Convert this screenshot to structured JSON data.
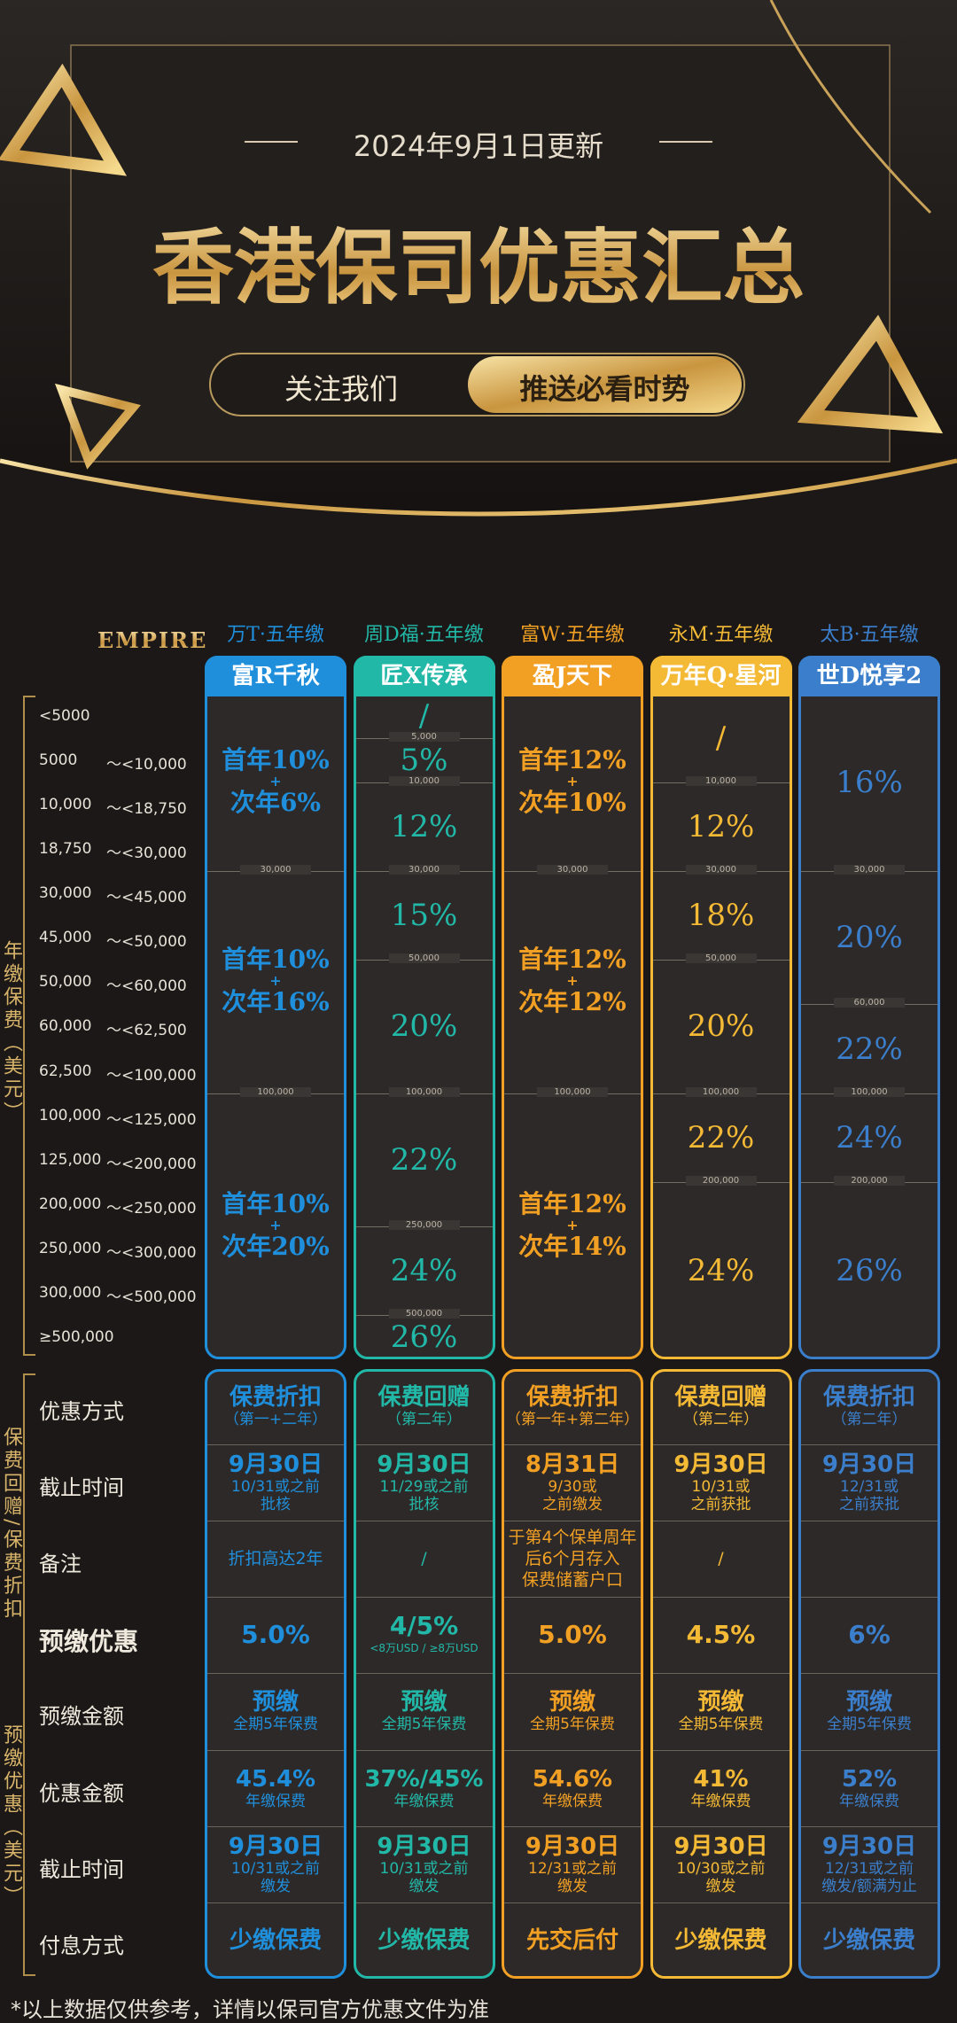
{
  "header": {
    "date": "2024年9月1日更新",
    "title": "香港保司优惠汇总",
    "buttons": [
      "关注我们",
      "推送必看时势"
    ]
  },
  "logo": "EMPIRE",
  "premium_section": {
    "side_label": "年缴保费（美元）",
    "ranges": [
      {
        "from": "<5000"
      },
      {
        "from": "5000",
        "to": "～<10,000"
      },
      {
        "from": "10,000",
        "to": "～<18,750"
      },
      {
        "from": "18,750",
        "to": "～<30,000"
      },
      {
        "from": "30,000",
        "to": "～<45,000"
      },
      {
        "from": "45,000",
        "to": "～<50,000"
      },
      {
        "from": "50,000",
        "to": "～<60,000"
      },
      {
        "from": "60,000",
        "to": "～<62,500"
      },
      {
        "from": "62,500",
        "to": "～<100,000"
      },
      {
        "from": "100,000",
        "to": "～<125,000"
      },
      {
        "from": "125,000",
        "to": "～<200,000"
      },
      {
        "from": "200,000",
        "to": "～<250,000"
      },
      {
        "from": "250,000",
        "to": "～<300,000"
      },
      {
        "from": "300,000",
        "to": "～<500,000"
      },
      {
        "from": "≥500,000"
      }
    ]
  },
  "offer_section": {
    "side_labels": [
      "保费回赠/保费折扣",
      "预缴优惠（美元）"
    ],
    "row_labels": [
      "优惠方式",
      "截止时间",
      "备注",
      "预缴优惠",
      "预缴金额",
      "优惠金额",
      "截止时间",
      "付息方式"
    ]
  },
  "columns": [
    {
      "plan": "万T·五年缴",
      "product": "富R千秋",
      "color": "#1f8fdc",
      "segments": [
        [
          "首年10%",
          "+",
          "次年6%"
        ],
        [
          "首年10%",
          "+",
          "次年16%"
        ],
        [
          "首年10%",
          "+",
          "次年20%"
        ]
      ],
      "boundaries": [
        "30,000",
        "100,000"
      ],
      "offers": [
        [
          "保费折扣",
          "（第一+二年）"
        ],
        [
          "9月30日",
          "10/31或之前",
          "批核"
        ],
        [
          "折扣高达2年"
        ],
        [
          "5.0%"
        ],
        [
          "预缴",
          "全期5年保费"
        ],
        [
          "45.4%",
          "年缴保费"
        ],
        [
          "9月30日",
          "10/31或之前",
          "缴发"
        ],
        [
          "少缴保费"
        ]
      ]
    },
    {
      "plan": "周D福·五年缴",
      "product": "匠X传承",
      "color": "#22b8a8",
      "segments": [
        [
          "/"
        ],
        [
          "5%"
        ],
        [
          "12%"
        ],
        [
          "15%"
        ],
        [
          "20%"
        ],
        [
          "22%"
        ],
        [
          "24%"
        ],
        [
          "26%"
        ]
      ],
      "boundaries": [
        "5,000",
        "10,000",
        "30,000",
        "50,000",
        "100,000",
        "250,000",
        "500,000"
      ],
      "offers": [
        [
          "保费回赠",
          "（第二年）"
        ],
        [
          "9月30日",
          "11/29或之前",
          "批核"
        ],
        [
          "/"
        ],
        [
          "4/5%",
          "<8万USD / ≥8万USD"
        ],
        [
          "预缴",
          "全期5年保费"
        ],
        [
          "37%/45%",
          "年缴保费"
        ],
        [
          "9月30日",
          "10/31或之前",
          "缴发"
        ],
        [
          "少缴保费"
        ]
      ]
    },
    {
      "plan": "富W·五年缴",
      "product": "盈J天下",
      "color": "#f2a024",
      "segments": [
        [
          "首年12%",
          "+",
          "次年10%"
        ],
        [
          "首年12%",
          "+",
          "次年12%"
        ],
        [
          "首年12%",
          "+",
          "次年14%"
        ]
      ],
      "boundaries": [
        "30,000",
        "100,000"
      ],
      "offers": [
        [
          "保费折扣",
          "（第一年+第二年）"
        ],
        [
          "8月31日",
          "9/30或",
          "之前缴发"
        ],
        [
          "于第4个保单周年",
          "后6个月存入",
          "保费储蓄户口"
        ],
        [
          "5.0%"
        ],
        [
          "预缴",
          "全期5年保费"
        ],
        [
          "54.6%",
          "年缴保费"
        ],
        [
          "9月30日",
          "12/31或之前",
          "缴发"
        ],
        [
          "先交后付"
        ]
      ]
    },
    {
      "plan": "永M·五年缴",
      "product": "万年Q·星河",
      "color": "#f4b935",
      "segments": [
        [
          "/"
        ],
        [
          "12%"
        ],
        [
          "18%"
        ],
        [
          "20%"
        ],
        [
          "22%"
        ],
        [
          "24%"
        ]
      ],
      "boundaries": [
        "10,000",
        "30,000",
        "50,000",
        "100,000",
        "200,000"
      ],
      "offers": [
        [
          "保费回赠",
          "（第二年）"
        ],
        [
          "9月30日",
          "10/31或",
          "之前获批"
        ],
        [
          "/"
        ],
        [
          "4.5%"
        ],
        [
          "预缴",
          "全期5年保费"
        ],
        [
          "41%",
          "年缴保费"
        ],
        [
          "9月30日",
          "10/30或之前",
          "缴发"
        ],
        [
          "少缴保费"
        ]
      ]
    },
    {
      "plan": "太B·五年缴",
      "product": "世D悦享2",
      "color": "#3b7fcc",
      "segments": [
        [
          "16%"
        ],
        [
          "20%"
        ],
        [
          "22%"
        ],
        [
          "24%"
        ],
        [
          "26%"
        ]
      ],
      "boundaries": [
        "30,000",
        "60,000",
        "100,000",
        "200,000"
      ],
      "offers": [
        [
          "保费折扣",
          "（第二年）"
        ],
        [
          "9月30日",
          "12/31或",
          "之前获批"
        ],
        [],
        [
          "6%"
        ],
        [
          "预缴",
          "全期5年保费"
        ],
        [
          "52%",
          "年缴保费"
        ],
        [
          "9月30日",
          "12/31或之前",
          "缴发/额满为止"
        ],
        [
          "少缴保费"
        ]
      ]
    }
  ],
  "footnote": "*以上数据仅供参考，详情以保司官方优惠文件为准"
}
